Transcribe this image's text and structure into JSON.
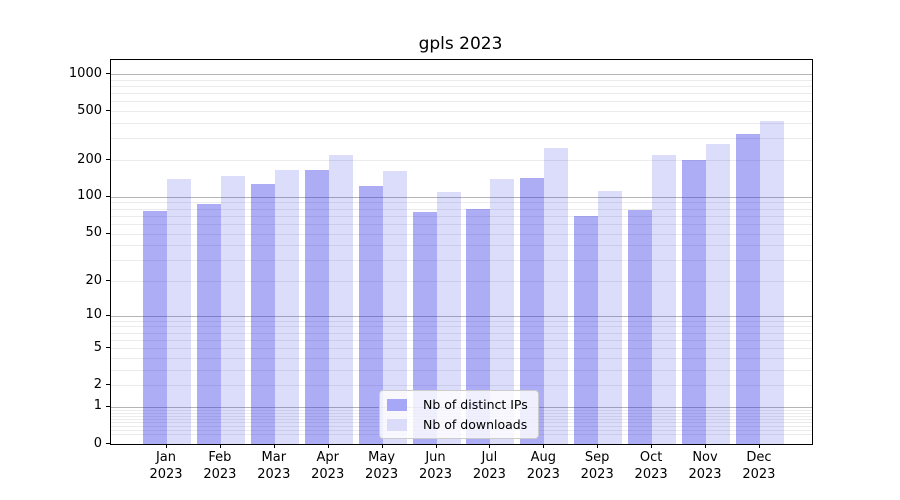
{
  "chart_data": {
    "type": "bar",
    "title": "gpls 2023",
    "categories": [
      "Jan",
      "Feb",
      "Mar",
      "Apr",
      "May",
      "Jun",
      "Jul",
      "Aug",
      "Sep",
      "Oct",
      "Nov",
      "Dec"
    ],
    "category_year": "2023",
    "series": [
      {
        "name": "Nb of distinct IPs",
        "values": [
          77,
          87,
          128,
          167,
          122,
          75,
          80,
          142,
          70,
          78,
          200,
          324
        ]
      },
      {
        "name": "Nb of downloads",
        "values": [
          140,
          147,
          165,
          221,
          164,
          109,
          140,
          250,
          111,
          218,
          272,
          415
        ]
      }
    ],
    "yscale": "log10(value+1)",
    "yticks": [
      1000,
      500,
      200,
      100,
      50,
      20,
      10,
      5,
      2,
      1,
      0
    ],
    "ylim": [
      0,
      1300
    ],
    "grid": "both-major-and-minor",
    "legend_position": "lower center"
  },
  "colors": {
    "bar_ips_rgba": "rgba(40,40,230,0.38)",
    "bar_downloads_rgba": "rgba(40,40,230,0.16)",
    "bar_ips_solid": "#a7a7f8",
    "bar_downloads_solid": "#dbdbfa",
    "grid_major": "#b5b5b5",
    "grid_minor": "#ebebeb",
    "axis": "#000000",
    "legend_border": "#cccccc"
  }
}
